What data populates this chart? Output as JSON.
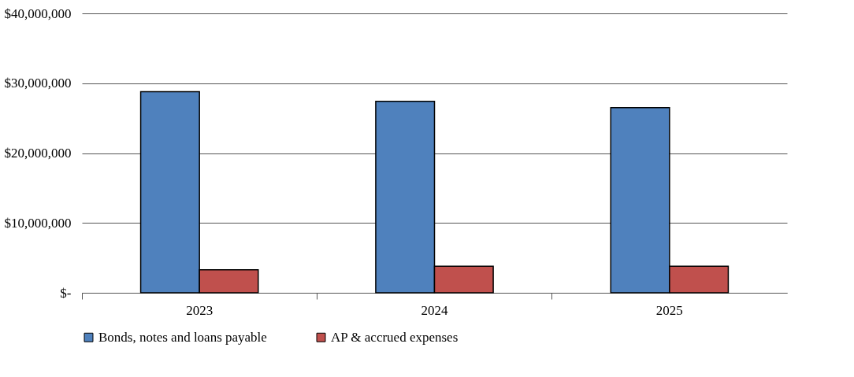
{
  "chart_data": {
    "type": "bar",
    "categories": [
      "2023",
      "2024",
      "2025"
    ],
    "series": [
      {
        "name": "Bonds, notes and loans payable",
        "color": "#4f81bd",
        "values": [
          28800000,
          27400000,
          26500000
        ]
      },
      {
        "name": "AP & accrued expenses",
        "color": "#c0504d",
        "values": [
          3300000,
          3800000,
          3800000
        ]
      }
    ],
    "ylim": [
      0,
      40000000
    ],
    "yticks": [
      {
        "value": 0,
        "label": "$-"
      },
      {
        "value": 10000000,
        "label": "$10,000,000"
      },
      {
        "value": 20000000,
        "label": "$20,000,000"
      },
      {
        "value": 30000000,
        "label": "$30,000,000"
      },
      {
        "value": 40000000,
        "label": "$40,000,000"
      }
    ],
    "grid": "y",
    "legend": "bottom"
  }
}
